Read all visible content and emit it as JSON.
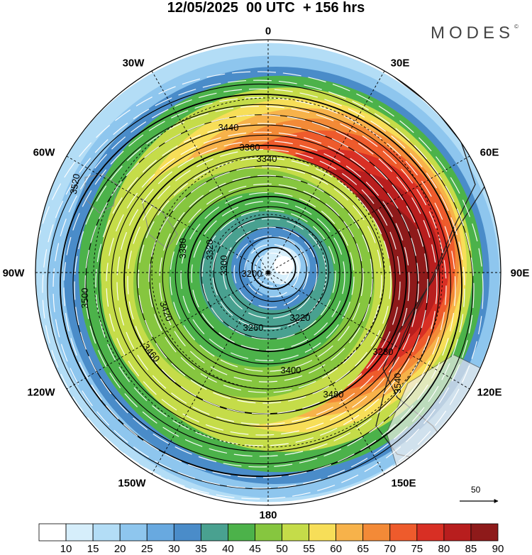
{
  "title": "12/05/2025  00 UTC  + 156 hrs",
  "brand": "MODES",
  "brand_mark": "©",
  "longitude_labels": {
    "n": "0",
    "nne": "30E",
    "ene": "60E",
    "e": "90E",
    "ese": "120E",
    "sse": "150E",
    "s": "180",
    "ssw": "150W",
    "wsw": "120W",
    "w": "90W",
    "wnw": "60W",
    "nnw": "30W"
  },
  "reference_vector": {
    "label": "50"
  },
  "colorbar": {
    "labels": [
      "10",
      "15",
      "20",
      "25",
      "30",
      "35",
      "40",
      "45",
      "50",
      "55",
      "60",
      "65",
      "70",
      "75",
      "80",
      "85",
      "90"
    ],
    "colors": [
      "#ffffff",
      "#d6eefb",
      "#b3ddf6",
      "#8ec6ee",
      "#68a9e0",
      "#4a8cc9",
      "#49a190",
      "#4cb24a",
      "#86c63f",
      "#c5dc49",
      "#f7de58",
      "#f7b24a",
      "#f38a37",
      "#ee5b2c",
      "#d82f24",
      "#b81e1e",
      "#8e1a1a"
    ]
  },
  "contours": {
    "interval": 20,
    "labels": [
      "3200",
      "3220",
      "3260",
      "3280",
      "3300",
      "3320",
      "3340",
      "3360",
      "3380",
      "3400",
      "3420",
      "3440",
      "3460",
      "3480",
      "3500",
      "3520",
      "3540"
    ]
  },
  "map": {
    "projection": "north-polar-stereographic",
    "graticule": "dashed",
    "ocean_color": "#ffffff",
    "land_color": "#eeeeee",
    "jet_core": "Eurasia / North Pacific sector, 80-90 kt"
  }
}
